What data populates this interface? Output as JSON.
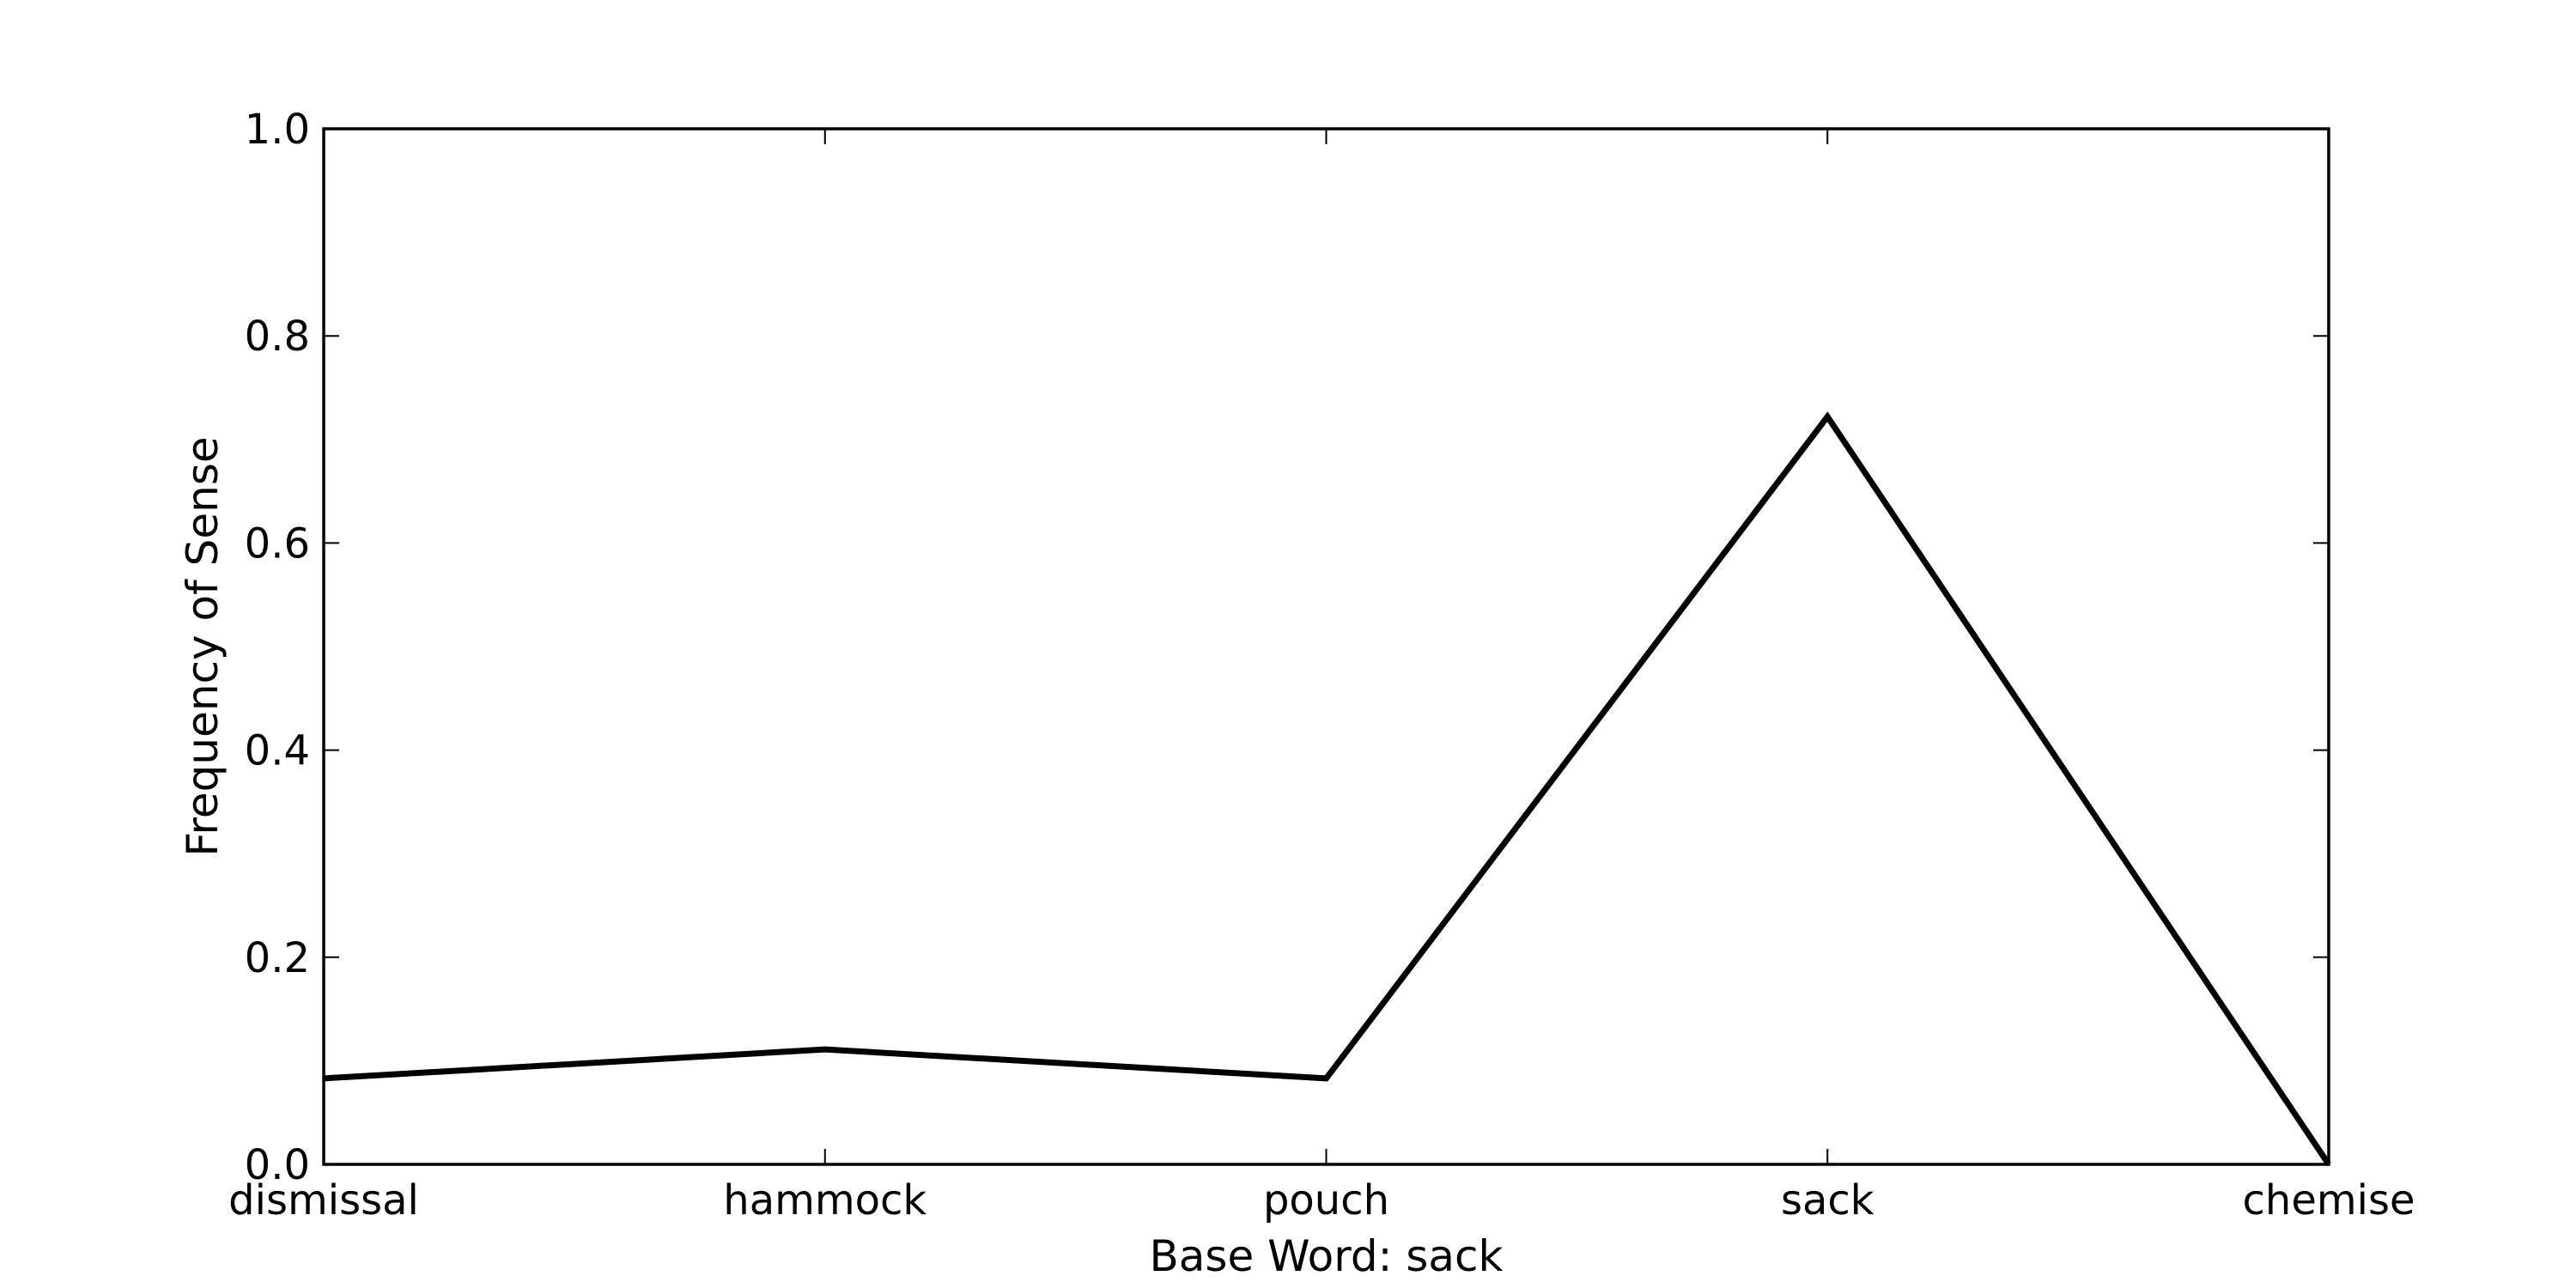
{
  "chart_data": {
    "type": "line",
    "title": "",
    "xlabel": "Base Word: sack",
    "ylabel": "Frequency of Sense",
    "categories": [
      "dismissal",
      "hammock",
      "pouch",
      "sack",
      "chemise"
    ],
    "series": [
      {
        "values": [
          0.083,
          0.111,
          0.083,
          0.722,
          0.0
        ],
        "color": "#000000"
      }
    ],
    "ylim": [
      0.0,
      1.0
    ],
    "yticks": [
      0.0,
      0.2,
      0.4,
      0.6,
      0.8,
      1.0
    ],
    "ytick_labels": [
      "0.0",
      "0.2",
      "0.4",
      "0.6",
      "0.8",
      "1.0"
    ],
    "grid": false,
    "legend": "none"
  }
}
